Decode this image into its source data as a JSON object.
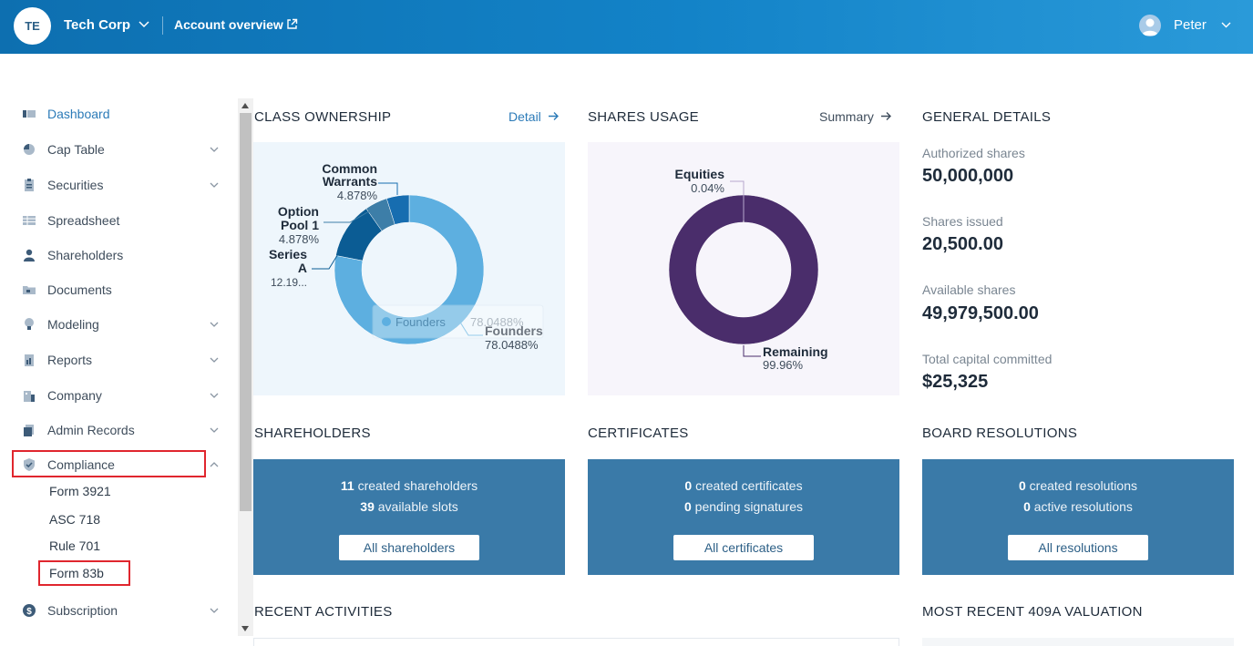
{
  "topbar": {
    "org_initials": "TE",
    "org_name": "Tech Corp",
    "account_link": "Account overview",
    "user_name": "Peter"
  },
  "sidebar": {
    "items": [
      {
        "label": "Dashboard",
        "icon": "dashboard-icon",
        "active": true
      },
      {
        "label": "Cap Table",
        "icon": "pie-chart-icon"
      },
      {
        "label": "Securities",
        "icon": "clipboard-icon"
      },
      {
        "label": "Spreadsheet",
        "icon": "spreadsheet-icon"
      },
      {
        "label": "Shareholders",
        "icon": "user-icon"
      },
      {
        "label": "Documents",
        "icon": "folder-icon"
      },
      {
        "label": "Modeling",
        "icon": "lightbulb-icon"
      },
      {
        "label": "Reports",
        "icon": "report-icon"
      },
      {
        "label": "Company",
        "icon": "building-icon"
      },
      {
        "label": "Admin Records",
        "icon": "records-icon"
      },
      {
        "label": "Compliance",
        "icon": "shield-icon"
      },
      {
        "label": "Subscription",
        "icon": "dollar-icon"
      }
    ],
    "compliance_sub": [
      "Form 3921",
      "ASC 718",
      "Rule 701",
      "Form 83b"
    ]
  },
  "class_ownership": {
    "title": "CLASS OWNERSHIP",
    "link": "Detail",
    "tooltip_label": "Founders",
    "tooltip_value": "78.0488%",
    "labels": {
      "common_1": "Common",
      "common_2": "Warrants",
      "common_pct": "4.878%",
      "option_1": "Option",
      "option_2": "Pool 1",
      "option_pct": "4.878%",
      "series_1": "Series",
      "series_2": "A",
      "series_pct": "12.19...",
      "founders": "Founders",
      "founders_pct": "78.0488%"
    }
  },
  "shares_usage": {
    "title": "SHARES USAGE",
    "link": "Summary",
    "labels": {
      "equities": "Equities",
      "equities_pct": "0.04%",
      "remaining": "Remaining",
      "remaining_pct": "99.96%"
    }
  },
  "chart_data": [
    {
      "type": "pie",
      "title": "CLASS OWNERSHIP",
      "categories": [
        "Founders",
        "Series A",
        "Option Pool 1",
        "Common Warrants"
      ],
      "values": [
        78.0488,
        12.1951,
        4.878,
        4.878
      ],
      "colors": [
        "#5dafe0",
        "#0b5c94",
        "#3d7ea8",
        "#176db0"
      ]
    },
    {
      "type": "pie",
      "title": "SHARES USAGE",
      "categories": [
        "Remaining",
        "Equities"
      ],
      "values": [
        99.96,
        0.04
      ],
      "colors": [
        "#4a2d6b",
        "#c9b9db"
      ]
    }
  ],
  "general_details": {
    "title": "GENERAL DETAILS",
    "authorized_label": "Authorized shares",
    "authorized_value": "50,000,000",
    "issued_label": "Shares issued",
    "issued_value": "20,500.00",
    "available_label": "Available shares",
    "available_value": "49,979,500.00",
    "capital_label": "Total capital committed",
    "capital_value": "$25,325"
  },
  "shareholders": {
    "title": "SHAREHOLDERS",
    "count1": "11",
    "text1": " created shareholders",
    "count2": "39",
    "text2": " available slots",
    "button": "All shareholders"
  },
  "certificates": {
    "title": "CERTIFICATES",
    "count1": "0",
    "text1": " created certificates",
    "count2": "0",
    "text2": " pending signatures",
    "button": "All certificates"
  },
  "board_resolutions": {
    "title": "BOARD RESOLUTIONS",
    "count1": "0",
    "text1": " created resolutions",
    "count2": "0",
    "text2": " active resolutions",
    "button": "All resolutions"
  },
  "recent_activities": {
    "title": "RECENT ACTIVITIES"
  },
  "valuation": {
    "title": "MOST RECENT 409A VALUATION"
  },
  "colors": {
    "brand": "#1383c8",
    "card": "#3a7aa8",
    "highlight": "#e0262e"
  }
}
